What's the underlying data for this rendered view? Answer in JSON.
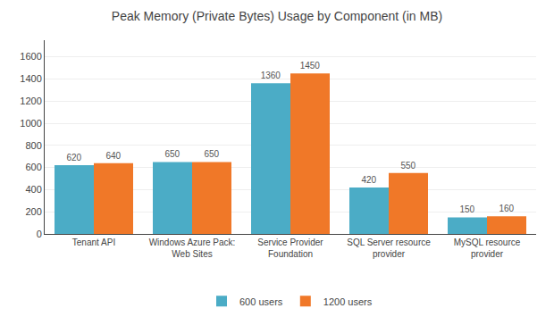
{
  "chart_data": {
    "type": "bar",
    "title": "Peak Memory (Private Bytes) Usage by Component (in MB)",
    "categories": [
      "Tenant API",
      "Windows Azure Pack:\nWeb Sites",
      "Service Provider\nFoundation",
      "SQL Server resource\nprovider",
      "MySQL resource\nprovider"
    ],
    "series": [
      {
        "name": "600 users",
        "color": "#4bacc6",
        "values": [
          620,
          650,
          1360,
          420,
          150
        ]
      },
      {
        "name": "1200 users",
        "color": "#f07828",
        "values": [
          640,
          650,
          1450,
          550,
          160
        ]
      }
    ],
    "ylim": [
      0,
      1750
    ],
    "yticks": [
      0,
      200,
      400,
      600,
      800,
      1000,
      1200,
      1400,
      1600
    ],
    "grid": true,
    "legend": "bottom",
    "data_labels": true
  }
}
